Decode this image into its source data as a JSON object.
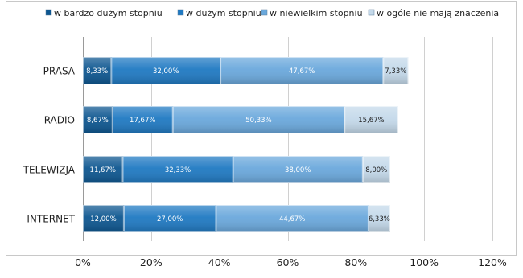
{
  "chart_data": {
    "type": "bar",
    "orientation": "horizontal",
    "stacked": true,
    "categories": [
      "PRASA",
      "RADIO",
      "TELEWIZJA",
      "INTERNET"
    ],
    "series": [
      {
        "name": "w bardzo dużym stopniu",
        "color": "#0d5690",
        "values": [
          8.33,
          8.67,
          11.67,
          12.0
        ],
        "labels": [
          "8,33%",
          "8,67%",
          "11,67%",
          "12,00%"
        ]
      },
      {
        "name": "w dużym stopniu",
        "color": "#1f79c2",
        "values": [
          32.0,
          17.67,
          32.33,
          27.0
        ],
        "labels": [
          "32,00%",
          "17,67%",
          "32,33%",
          "27,00%"
        ]
      },
      {
        "name": "w niewielkim stopniu",
        "color": "#6aa8dc",
        "values": [
          47.67,
          50.33,
          38.0,
          44.67
        ],
        "labels": [
          "47,67%",
          "50,33%",
          "38,00%",
          "44,67%"
        ]
      },
      {
        "name": "w ogóle nie mają znaczenia",
        "color": "#c4d9ea",
        "values": [
          7.33,
          15.67,
          8.0,
          6.33
        ],
        "labels": [
          "7,33%",
          "15,67%",
          "8,00%",
          "6,33%"
        ]
      }
    ],
    "xlim": [
      0,
      120
    ],
    "xticks": [
      "0%",
      "20%",
      "40%",
      "60%",
      "80%",
      "100%",
      "120%"
    ],
    "grid": true,
    "legend_position": "top"
  }
}
